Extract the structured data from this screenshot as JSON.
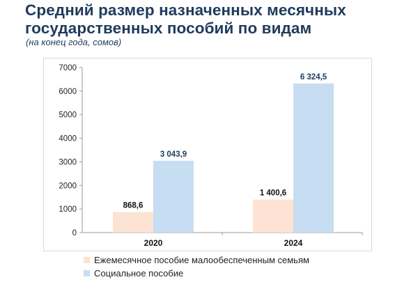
{
  "header": {
    "title_line1": "Средний размер назначенных месячных",
    "title_line2": "государственных пособий по видам",
    "subtitle": "(на конец года, сомов)"
  },
  "chart_data": {
    "type": "bar",
    "title": "Средний размер назначенных месячных государственных пособий по видам",
    "subtitle": "(на конец года, сомов)",
    "categories": [
      "2020",
      "2024"
    ],
    "series": [
      {
        "name": "Ежемесячное пособие малообеспеченным семьям",
        "values": [
          868.6,
          1400.6
        ],
        "labels": [
          "868,6",
          "1 400,6"
        ],
        "color": "#fde3d3"
      },
      {
        "name": "Социальное пособие",
        "values": [
          3043.9,
          6324.5
        ],
        "labels": [
          "3 043,9",
          "6 324,5"
        ],
        "color": "#c7ddf2"
      }
    ],
    "ylim": [
      0,
      7000
    ],
    "yticks": [
      "0",
      "1000",
      "2000",
      "3000",
      "4000",
      "5000",
      "6000",
      "7000"
    ],
    "grid": false,
    "legend_position": "bottom",
    "xlabel": "",
    "ylabel": ""
  }
}
